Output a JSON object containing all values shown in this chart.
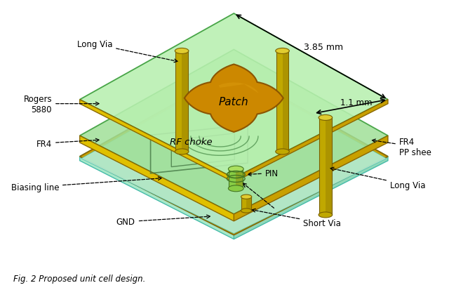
{
  "bg_color": "#ffffff",
  "green_light": "#b8f0b0",
  "green_medium": "#a0e098",
  "green_dark_ec": "#339933",
  "cyan_fc": "#b0eedc",
  "cyan_ec": "#44bbaa",
  "gold_fc": "#c8a000",
  "gold_ec": "#8B6800",
  "gold_light": "#e0c000",
  "orange_patch_fc": "#cc8800",
  "orange_patch_ec": "#8B5500",
  "orange_patch_light": "#e0a010",
  "cyl_fc": "#c0a800",
  "cyl_top": "#e0cc30",
  "cyl_ec": "#7a6000",
  "green_pin_fc": "#88cc44",
  "green_pin_ec": "#447722",
  "caption": "Fig. 2 Proposed unit cell design.",
  "dim1_label": "3.85 mm",
  "dim2_label": "1.1 mm",
  "label_long_via_top": "Long Via",
  "label_rogers": "Rogers\n5880",
  "label_fr4_left": "FR4",
  "label_biasing": "Biasing line",
  "label_gnd": "GND",
  "label_patch": "Patch",
  "label_rf_choke": "RF choke",
  "label_pin": "PIN",
  "label_fr4_right": "FR4\nPP shee",
  "label_long_via_right": "Long Via",
  "label_short_via": "Short Via"
}
